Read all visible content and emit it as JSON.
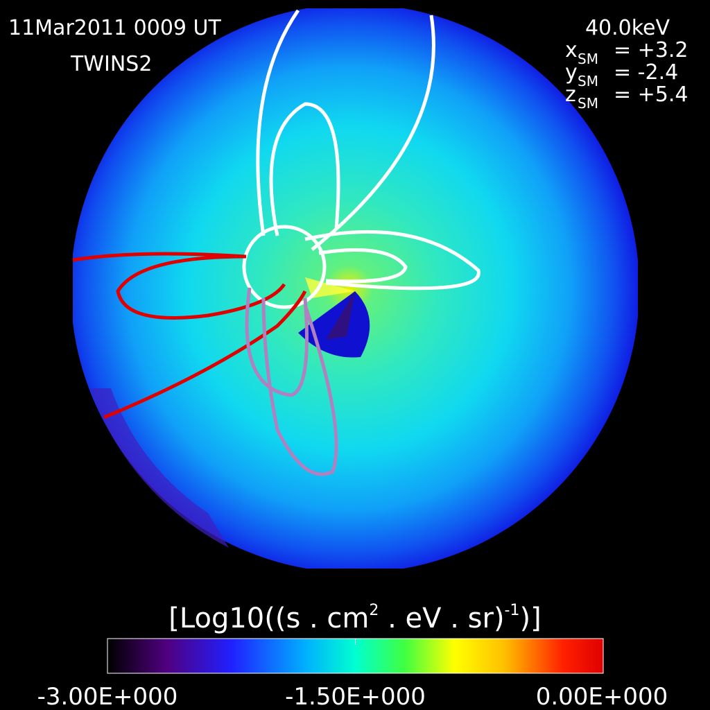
{
  "image": {
    "date": "11Mar2011 0009 UT",
    "satellite": "TWINS2",
    "energy": "40.0keV",
    "position": [
      {
        "axis": "x",
        "frame": "SM",
        "value": "= +3.2"
      },
      {
        "axis": "y",
        "frame": "SM",
        "value": "= -2.4"
      },
      {
        "axis": "z",
        "frame": "SM",
        "value": "= +5.4"
      }
    ]
  },
  "colorbar": {
    "title": [
      "[Log10((s . cm",
      "2",
      " . eV . sr)",
      "-1",
      ")]"
    ],
    "range": [
      -3,
      0
    ],
    "ticks": [
      {
        "value": -3,
        "label": "-3.00E+000"
      },
      {
        "value": -1.5,
        "label": "-1.50E+000"
      },
      {
        "value": 0,
        "label": "0.00E+000"
      }
    ]
  }
}
